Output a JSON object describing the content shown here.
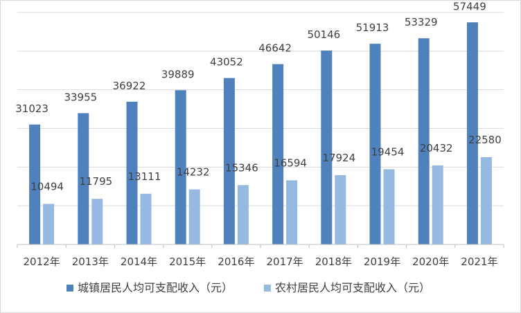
{
  "chart_data": {
    "type": "bar",
    "title": "",
    "xlabel": "",
    "ylabel": "",
    "categories": [
      "2012年",
      "2013年",
      "2014年",
      "2015年",
      "2016年",
      "2017年",
      "2018年",
      "2019年",
      "2020年",
      "2021年"
    ],
    "series": [
      {
        "name": "城镇居民人均可支配收入（元）",
        "color": "#4f81bd",
        "values": [
          31023,
          33955,
          36922,
          39889,
          43052,
          46642,
          50146,
          51913,
          53329,
          57449
        ]
      },
      {
        "name": "农村居民人均可支配收入（元）",
        "color": "#95b9e0",
        "values": [
          10494,
          11795,
          13111,
          14232,
          15346,
          16594,
          17924,
          19454,
          20432,
          22580
        ]
      }
    ],
    "ylim": [
      0,
      60000
    ],
    "grid": true,
    "legend_position": "bottom",
    "data_labels": true
  }
}
